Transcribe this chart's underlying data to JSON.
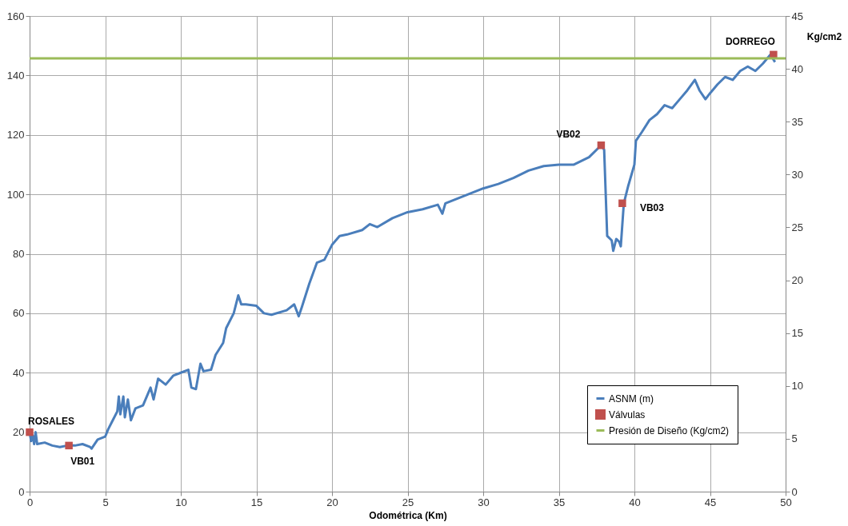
{
  "chart_data": {
    "type": "line",
    "xlabel": "Odométrica (Km)",
    "y2label": "Kg/cm2",
    "xlim": [
      0,
      50
    ],
    "xticks": [
      0,
      5,
      10,
      15,
      20,
      25,
      30,
      35,
      40,
      45,
      50
    ],
    "ylim": [
      0,
      160
    ],
    "yticks": [
      0,
      20,
      40,
      60,
      80,
      100,
      120,
      140,
      160
    ],
    "y2lim": [
      0,
      45
    ],
    "y2ticks": [
      0,
      5,
      10,
      15,
      20,
      25,
      30,
      35,
      40,
      45
    ],
    "grid": true,
    "legend": "bottom right",
    "line_style": "solid",
    "series": [
      {
        "name": "ASNM (m)",
        "color": "#4a7ebb",
        "x": [
          0,
          0.1,
          0.2,
          0.3,
          0.4,
          0.5,
          1,
          1.5,
          2,
          2.5,
          3,
          3.5,
          4,
          4.1,
          4.5,
          5,
          5.2,
          5.5,
          5.8,
          5.9,
          6,
          6.2,
          6.3,
          6.5,
          6.7,
          7,
          7.5,
          8,
          8.2,
          8.5,
          9,
          9.5,
          10,
          10.5,
          10.7,
          11,
          11.3,
          11.5,
          12,
          12.3,
          12.8,
          13,
          13.5,
          13.8,
          14,
          14.3,
          15,
          15.5,
          16,
          17,
          17.5,
          17.8,
          18,
          18.5,
          19,
          19.5,
          20,
          20.5,
          21,
          22,
          22.5,
          23,
          24,
          25,
          26,
          27,
          27.3,
          27.5,
          28,
          29,
          30,
          31,
          32,
          33,
          34,
          35,
          36,
          37,
          37.8,
          38,
          38.2,
          38.5,
          38.6,
          38.8,
          39,
          39.1,
          39.3,
          39.6,
          40,
          40.1,
          40.5,
          41,
          41.5,
          42,
          42.5,
          43,
          43.5,
          44,
          44.3,
          44.7,
          45,
          45.5,
          46,
          46.5,
          47,
          47.5,
          48,
          48.5,
          49,
          49.3
        ],
        "values": [
          20,
          17,
          19,
          16,
          20,
          16,
          16.5,
          15.5,
          15,
          15.5,
          15.5,
          16,
          15,
          14.5,
          17.5,
          18.5,
          21,
          24,
          27,
          32,
          26,
          32,
          25,
          31,
          24,
          28,
          29,
          35,
          31,
          38,
          36,
          39,
          40,
          41,
          35,
          34.5,
          43,
          40.5,
          41,
          46,
          50,
          55,
          60,
          66,
          63,
          63,
          62.5,
          60,
          59.5,
          61,
          63,
          59,
          62,
          70,
          77,
          78,
          83,
          86,
          86.5,
          88,
          90,
          89,
          92,
          94,
          95,
          96.5,
          93.5,
          97,
          98,
          100,
          102,
          103.5,
          105.5,
          108,
          109.5,
          110,
          110,
          112.5,
          116.5,
          115,
          86,
          84.5,
          81,
          85,
          84,
          82.5,
          97,
          103,
          110,
          118,
          121,
          125,
          127,
          130,
          129,
          132,
          135,
          138.5,
          135,
          132,
          134,
          137,
          139.5,
          138.5,
          141.5,
          143,
          141.5,
          144,
          147,
          144.5
        ]
      },
      {
        "name": "Válvulas",
        "type": "scatter",
        "marker": "square",
        "color": "#c0504d",
        "x": [
          0,
          2.6,
          37.8,
          39.2,
          49.2
        ],
        "values": [
          20,
          15.5,
          116.5,
          97,
          147
        ]
      },
      {
        "name": "Presión de Diseño (Kg/cm2)",
        "axis": "y2",
        "color": "#9bbb59",
        "x": [
          0,
          50
        ],
        "values": [
          41,
          41
        ]
      }
    ],
    "annotations": [
      {
        "text": "ROSALES",
        "x": 0,
        "y": 20
      },
      {
        "text": "VB01",
        "x": 2.6,
        "y": 15.5
      },
      {
        "text": "VB02",
        "x": 37.8,
        "y": 116.5
      },
      {
        "text": "VB03",
        "x": 39.2,
        "y": 97
      },
      {
        "text": "DORREGO",
        "x": 49.2,
        "y": 147
      }
    ]
  }
}
